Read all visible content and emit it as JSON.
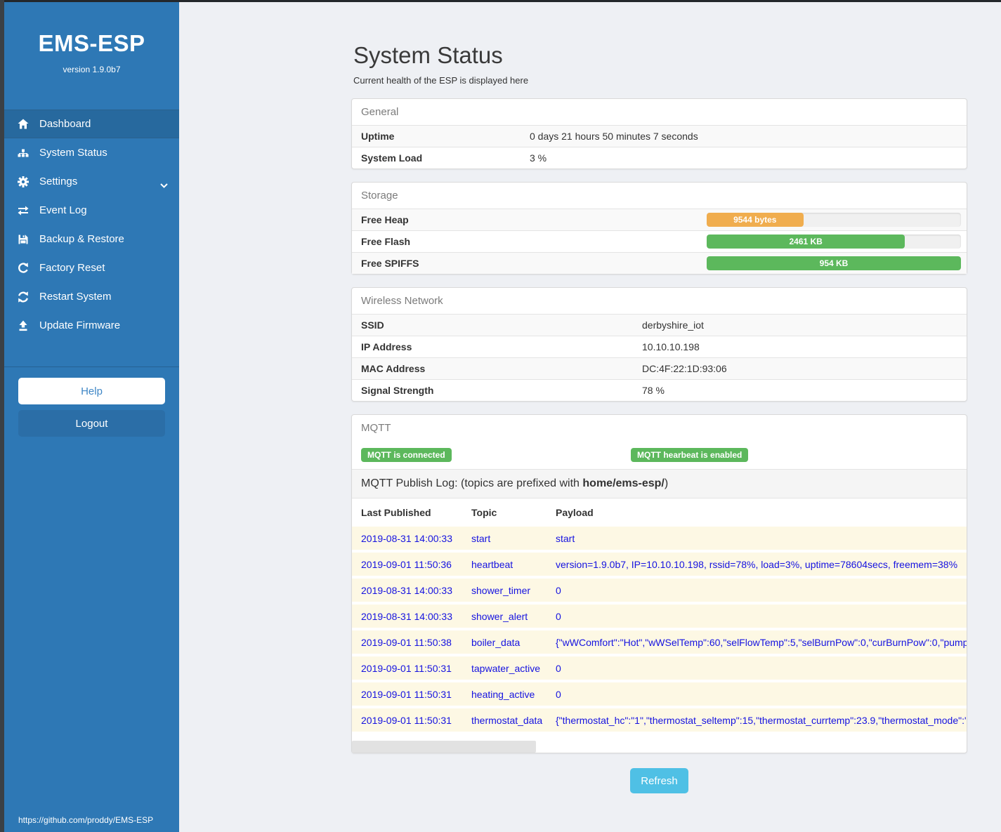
{
  "sidebar": {
    "title": "EMS-ESP",
    "version": "version 1.9.0b7",
    "items": [
      {
        "label": "Dashboard",
        "icon": "home-icon"
      },
      {
        "label": "System Status",
        "icon": "sitemap-icon"
      },
      {
        "label": "Settings",
        "icon": "gear-icon"
      },
      {
        "label": "Event Log",
        "icon": "exchange-icon"
      },
      {
        "label": "Backup & Restore",
        "icon": "save-icon"
      },
      {
        "label": "Factory Reset",
        "icon": "redo-icon"
      },
      {
        "label": "Restart System",
        "icon": "sync-icon"
      },
      {
        "label": "Update Firmware",
        "icon": "upload-icon"
      }
    ],
    "help_label": "Help",
    "logout_label": "Logout",
    "github_link": "https://github.com/proddy/EMS-ESP"
  },
  "page": {
    "title": "System Status",
    "subtitle": "Current health of the ESP is displayed here"
  },
  "panels": {
    "general": {
      "title": "General",
      "rows": [
        {
          "label": "Uptime",
          "value": "0 days 21 hours 50 minutes 7 seconds"
        },
        {
          "label": "System Load",
          "value": "3 %"
        }
      ]
    },
    "storage": {
      "title": "Storage",
      "rows": [
        {
          "label": "Free Heap",
          "bar_label": "9544 bytes",
          "percent": 38,
          "color": "#f0ad4e"
        },
        {
          "label": "Free Flash",
          "bar_label": "2461 KB",
          "percent": 78,
          "color": "#5cb85c"
        },
        {
          "label": "Free SPIFFS",
          "bar_label": "954 KB",
          "percent": 100,
          "color": "#5cb85c"
        }
      ]
    },
    "wireless": {
      "title": "Wireless Network",
      "rows": [
        {
          "label": "SSID",
          "value": "derbyshire_iot"
        },
        {
          "label": "IP Address",
          "value": "10.10.10.198"
        },
        {
          "label": "MAC Address",
          "value": "DC:4F:22:1D:93:06"
        },
        {
          "label": "Signal Strength",
          "value": "78 %"
        }
      ]
    },
    "mqtt": {
      "title": "MQTT",
      "badges": [
        "MQTT is connected",
        "MQTT hearbeat is enabled"
      ],
      "publog_prefix": "MQTT Publish Log: (topics are prefixed with ",
      "publog_bold": "home/ems-esp/",
      "publog_suffix": ")",
      "table": {
        "headers": [
          "Last Published",
          "Topic",
          "Payload"
        ],
        "rows": [
          {
            "time": "2019-08-31 14:00:33",
            "topic": "start",
            "payload": "start"
          },
          {
            "time": "2019-09-01 11:50:36",
            "topic": "heartbeat",
            "payload": "version=1.9.0b7, IP=10.10.10.198, rssid=78%, load=3%, uptime=78604secs, freemem=38%"
          },
          {
            "time": "2019-08-31 14:00:33",
            "topic": "shower_timer",
            "payload": "0"
          },
          {
            "time": "2019-08-31 14:00:33",
            "topic": "shower_alert",
            "payload": "0"
          },
          {
            "time": "2019-09-01 11:50:38",
            "topic": "boiler_data",
            "payload": "{\"wWComfort\":\"Hot\",\"wWSelTemp\":60,\"selFlowTemp\":5,\"selBurnPow\":0,\"curBurnPow\":0,\"pump"
          },
          {
            "time": "2019-09-01 11:50:31",
            "topic": "tapwater_active",
            "payload": "0"
          },
          {
            "time": "2019-09-01 11:50:31",
            "topic": "heating_active",
            "payload": "0"
          },
          {
            "time": "2019-09-01 11:50:31",
            "topic": "thermostat_data",
            "payload": "{\"thermostat_hc\":\"1\",\"thermostat_seltemp\":15,\"thermostat_currtemp\":23.9,\"thermostat_mode\":\""
          }
        ]
      }
    }
  },
  "refresh_label": "Refresh",
  "colors": {
    "sidebar": "#2e78b5",
    "sidebar_active": "#27699e",
    "badge_green": "#5cb85c",
    "bar_orange": "#f0ad4e",
    "bar_green": "#5cb85c",
    "refresh_blue": "#4fc0e5",
    "log_row_bg": "#fdf8e4",
    "log_text_blue": "#1512e0"
  }
}
